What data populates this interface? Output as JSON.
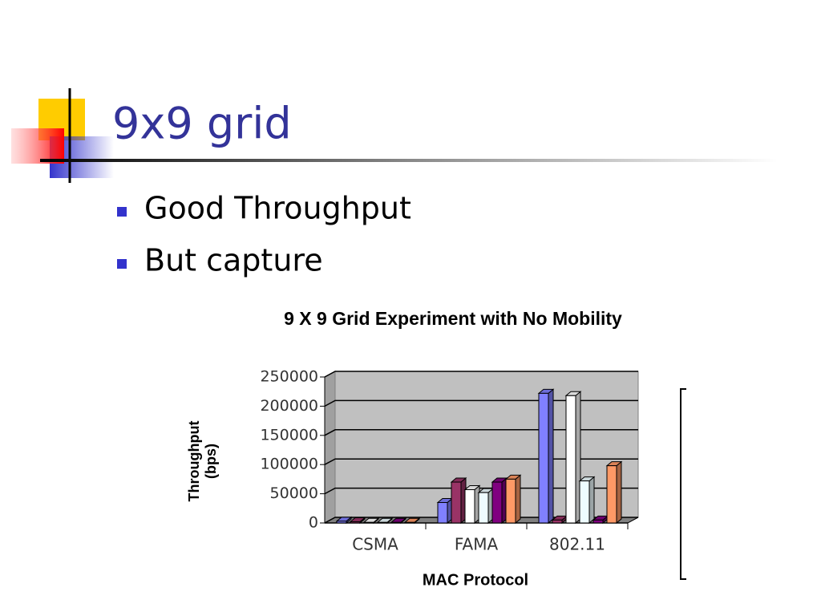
{
  "slide": {
    "title": "9x9 grid",
    "bullets": [
      "Good Throughput",
      "But capture"
    ]
  },
  "chart_data": {
    "type": "bar3d",
    "title": "9 X 9 Grid Experiment with No Mobility",
    "x_label": "MAC Protocol",
    "y_label": "Throughput (bps)",
    "categories": [
      "CSMA",
      "FAMA",
      "802.11"
    ],
    "series": [
      {
        "color": "#8080ff",
        "values": [
          3000,
          35000,
          222000
        ]
      },
      {
        "color": "#993366",
        "values": [
          2000,
          70000,
          5000
        ]
      },
      {
        "color": "#ffffff",
        "values": [
          1000,
          57000,
          218000
        ]
      },
      {
        "color": "#eefcff",
        "values": [
          1000,
          52000,
          72000
        ]
      },
      {
        "color": "#800080",
        "values": [
          1000,
          70000,
          5000
        ]
      },
      {
        "color": "#ff9966",
        "values": [
          1000,
          75000,
          98000
        ]
      }
    ],
    "ylim": [
      0,
      250000
    ],
    "yticks": [
      0,
      50000,
      100000,
      150000,
      200000,
      250000
    ],
    "grid": true
  }
}
